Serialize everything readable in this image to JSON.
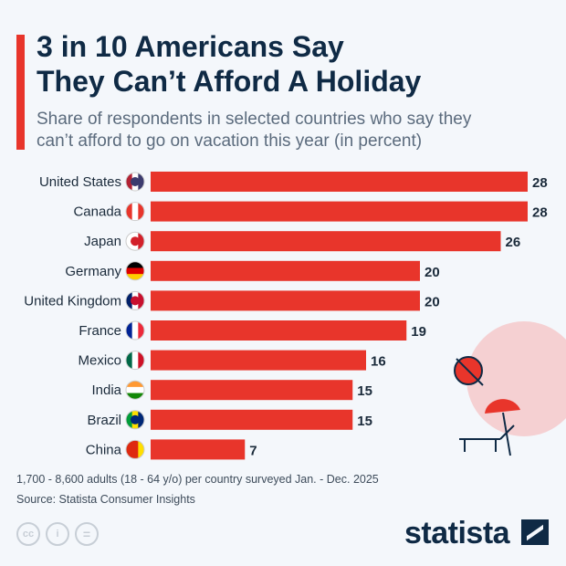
{
  "header": {
    "title_line1": "3 in 10 Americans Say",
    "title_line2": "They Can’t Afford A Holiday",
    "subtitle_line1": "Share of respondents in selected countries who say they",
    "subtitle_line2": "can’t afford to go on vacation this year (in percent)"
  },
  "chart_data": {
    "type": "bar",
    "orientation": "horizontal",
    "categories": [
      "United States",
      "Canada",
      "Japan",
      "Germany",
      "United Kingdom",
      "France",
      "Mexico",
      "India",
      "Brazil",
      "China"
    ],
    "values": [
      28,
      28,
      26,
      20,
      20,
      19,
      16,
      15,
      15,
      7
    ],
    "flags": [
      "us-flag-icon",
      "canada-flag-icon",
      "japan-flag-icon",
      "germany-flag-icon",
      "uk-flag-icon",
      "france-flag-icon",
      "mexico-flag-icon",
      "india-flag-icon",
      "brazil-flag-icon",
      "china-flag-icon"
    ],
    "xlim": [
      0,
      28
    ],
    "grid": false,
    "bar_color": "#e8352b"
  },
  "footer": {
    "note": "1,700 - 8,600 adults (18 - 64 y/o) per country surveyed Jan. - Dec. 2025",
    "source": "Source: Statista Consumer Insights",
    "logo": "statista",
    "cc_labels": [
      "cc",
      "i",
      "="
    ]
  },
  "colors": {
    "accent": "#e8352b",
    "title": "#0f2a45",
    "background": "#f4f7fb"
  }
}
